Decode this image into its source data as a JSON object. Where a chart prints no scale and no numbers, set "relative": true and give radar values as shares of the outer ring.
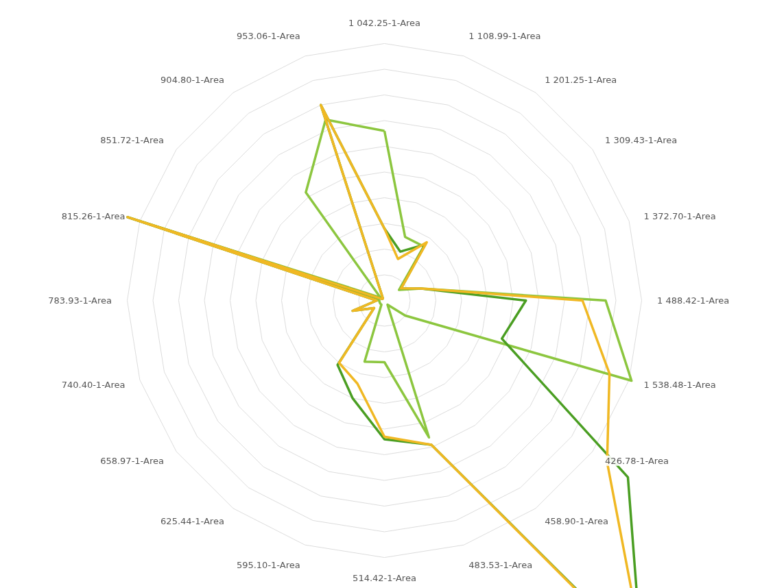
{
  "chart_data": {
    "type": "radar",
    "relative": true,
    "grid": true,
    "categories": [
      "1 042.25-1-Area",
      "1 108.99-1-Area",
      "1 201.25-1-Area",
      "1 309.43-1-Area",
      "1 372.70-1-Area",
      "1 488.42-1-Area",
      "1 538.48-1-Area",
      "426.78-1-Area",
      "458.90-1-Area",
      "483.53-1-Area",
      "514.42-1-Area",
      "595.10-1-Area",
      "625.44-1-Area",
      "658.97-1-Area",
      "740.40-1-Area",
      "783.93-1-Area",
      "815.26-1-Area",
      "851.72-1-Area",
      "904.80-1-Area",
      "953.06-1-Area"
    ],
    "series": [
      {
        "color": "#8cc63f",
        "values": [
          0.66,
          0.26,
          0.26,
          0.07,
          0.15,
          0.86,
          1.01,
          0.1,
          0.02,
          0.56,
          0.24,
          0.25,
          0.02,
          0.02,
          0.02,
          0.02,
          1.05,
          0.02,
          0.52,
          0.74
        ]
      },
      {
        "color": "#4a9e22",
        "values": [
          0.28,
          0.2,
          0.27,
          0.08,
          0.15,
          0.55,
          0.48,
          1.17,
          1.7,
          0.59,
          0.54,
          0.4,
          0.31,
          0.05,
          0.13,
          0.03,
          1.05,
          0.01,
          0.01,
          0.8
        ]
      },
      {
        "color": "#f0b823",
        "values": [
          0.28,
          0.17,
          0.28,
          0.08,
          0.15,
          0.77,
          0.92,
          1.07,
          1.72,
          0.59,
          0.53,
          0.34,
          0.3,
          0.05,
          0.13,
          0.03,
          1.05,
          0.01,
          0.01,
          0.8
        ]
      }
    ]
  }
}
